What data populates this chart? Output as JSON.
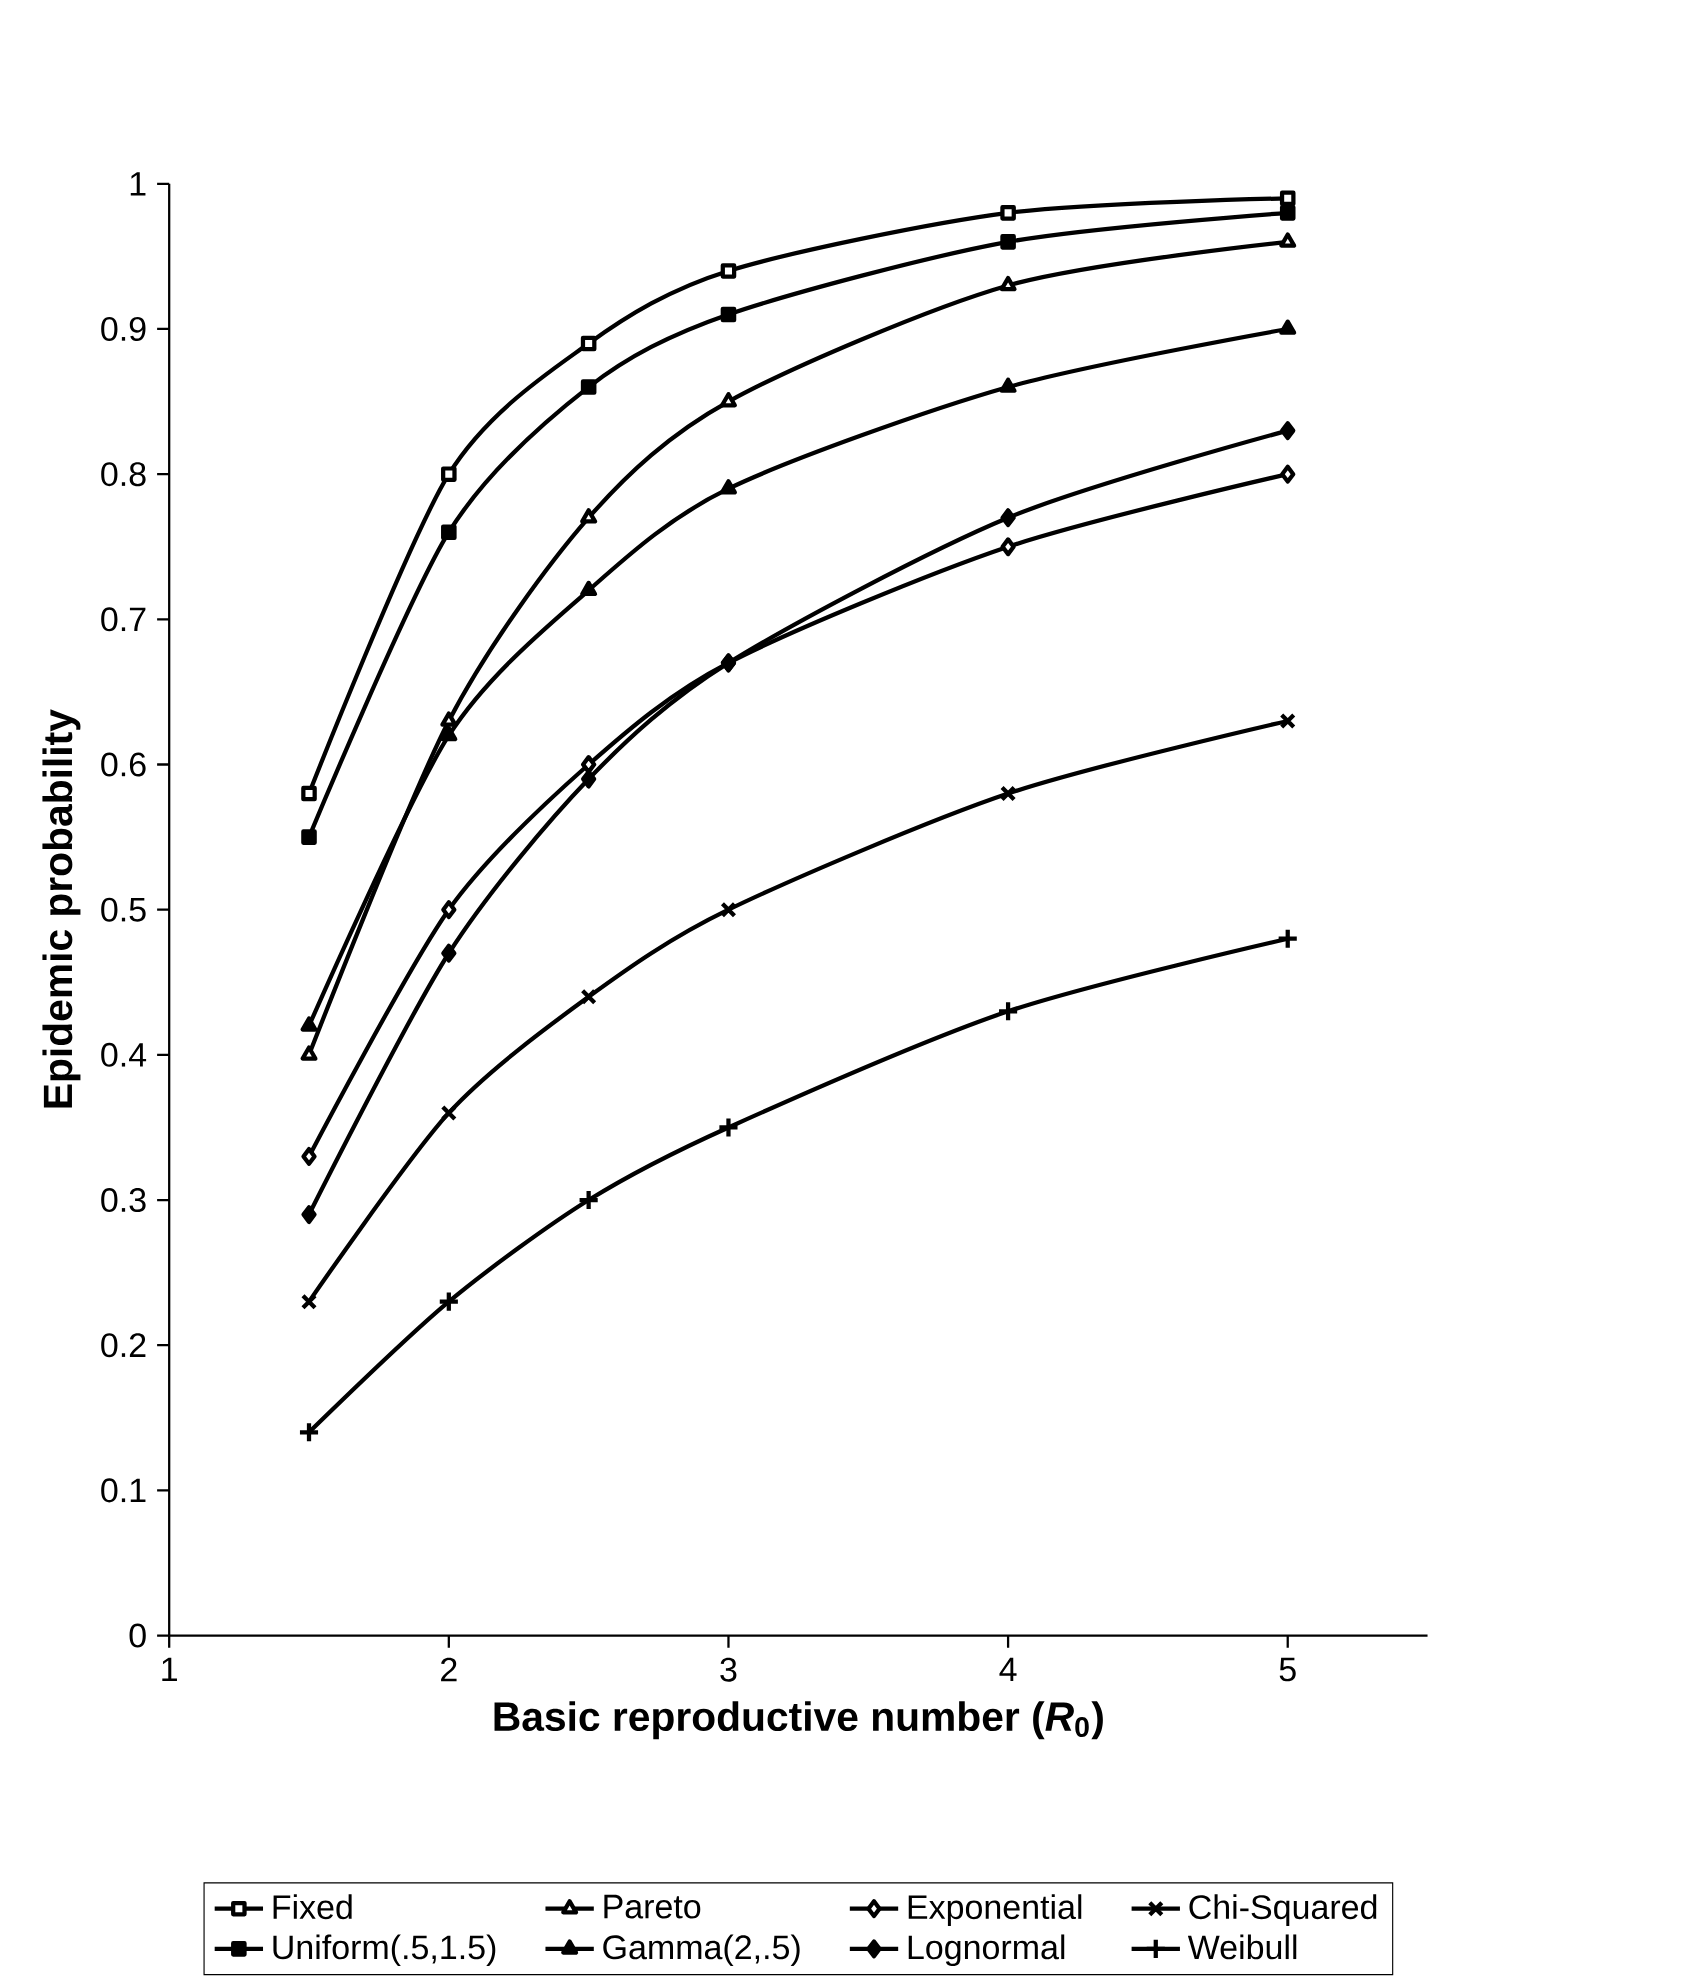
{
  "chart_data": {
    "type": "line",
    "xlabel": "Basic reproductive number (*R*$_{0}$)",
    "ylabel": "Epidemic probability",
    "x": [
      1.5,
      2,
      2.5,
      3,
      4,
      5
    ],
    "xlim": [
      1,
      5.5
    ],
    "xticks": [
      1,
      2,
      3,
      4,
      5
    ],
    "ylim": [
      0,
      1
    ],
    "yticks": [
      0,
      0.1,
      0.2,
      0.3,
      0.4,
      0.5,
      0.6,
      0.7,
      0.8,
      0.9,
      1
    ],
    "grid": false,
    "legend": "bottom",
    "line_style": "solid",
    "series": [
      {
        "name": "Fixed",
        "color": "#000000",
        "marker": "square-open",
        "values": [
          0.58,
          0.8,
          0.89,
          0.94,
          0.98,
          0.99
        ]
      },
      {
        "name": "Pareto",
        "color": "#000000",
        "marker": "triangle-open",
        "values": [
          0.4,
          0.63,
          0.77,
          0.85,
          0.93,
          0.96
        ]
      },
      {
        "name": "Exponential",
        "color": "#000000",
        "marker": "diamond-open",
        "values": [
          0.33,
          0.5,
          0.6,
          0.67,
          0.75,
          0.8
        ]
      },
      {
        "name": "Chi-Squared",
        "color": "#000000",
        "marker": "cross",
        "values": [
          0.23,
          0.36,
          0.44,
          0.5,
          0.58,
          0.63
        ]
      },
      {
        "name": "Uniform(.5,1.5)",
        "color": "#000000",
        "marker": "square",
        "values": [
          0.55,
          0.76,
          0.86,
          0.91,
          0.96,
          0.98
        ]
      },
      {
        "name": "Gamma(2,.5)",
        "color": "#000000",
        "marker": "triangle",
        "values": [
          0.42,
          0.62,
          0.72,
          0.79,
          0.86,
          0.9
        ]
      },
      {
        "name": "Lognormal",
        "color": "#000000",
        "marker": "diamond",
        "values": [
          0.29,
          0.47,
          0.59,
          0.67,
          0.77,
          0.83
        ]
      },
      {
        "name": "Weibull",
        "color": "#000000",
        "marker": "plus",
        "values": [
          0.14,
          0.23,
          0.3,
          0.35,
          0.43,
          0.48
        ]
      }
    ]
  }
}
